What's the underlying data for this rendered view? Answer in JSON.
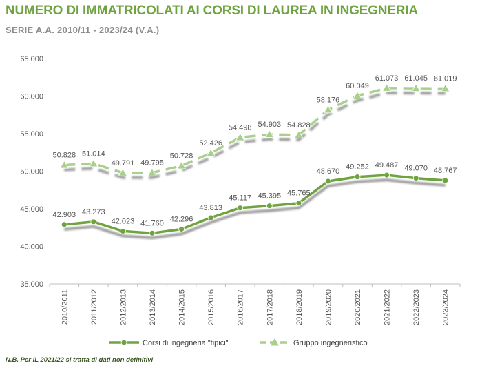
{
  "title": "NUMERO DI IMMATRICOLATI AI CORSI DI LAUREA IN INGEGNERIA",
  "subtitle": "SERIE A.A. 2010/11 - 2023/24  (V.A.)",
  "note": "N.B. Per IL 2021/22 si tratta di dati non definitivi",
  "chart_data": {
    "type": "line",
    "categories": [
      "2010/2011",
      "2011/2012",
      "2012/2013",
      "2013/2014",
      "2014/2015",
      "2015/2016",
      "2016/2017",
      "2017/2018",
      "2018/2019",
      "2019/2020",
      "2020/2021",
      "2021/2022",
      "2022/2023",
      "2023/2024"
    ],
    "ylim": [
      35000,
      65000
    ],
    "yticks": [
      35000,
      40000,
      45000,
      50000,
      55000,
      60000,
      65000
    ],
    "ytick_labels": [
      "35.000",
      "40.000",
      "45.000",
      "50.000",
      "55.000",
      "60.000",
      "65.000"
    ],
    "grid": false,
    "legend_position": "bottom",
    "series": [
      {
        "name": "Corsi di ingegneria \"tipici\"",
        "color": "#6fa33f",
        "line_style": "solid",
        "marker": "circle",
        "values": [
          42903,
          43273,
          42023,
          41760,
          42296,
          43813,
          45117,
          45395,
          45765,
          48670,
          49252,
          49487,
          49070,
          48767
        ],
        "labels": [
          "42.903",
          "43.273",
          "42.023",
          "41.760",
          "42.296",
          "43.813",
          "45.117",
          "45.395",
          "45.765",
          "48.670",
          "49.252",
          "49.487",
          "49.070",
          "48.767"
        ]
      },
      {
        "name": "Gruppo ingegneristico",
        "color": "#a9cf8c",
        "line_style": "dashed",
        "marker": "triangle",
        "values": [
          50828,
          51014,
          49791,
          49795,
          50728,
          52426,
          54498,
          54903,
          54828,
          58176,
          60049,
          61073,
          61045,
          61019
        ],
        "labels": [
          "50.828",
          "51.014",
          "49.791",
          "49.795",
          "50.728",
          "52.426",
          "54.498",
          "54.903",
          "54.828",
          "58.176",
          "60.049",
          "61.073",
          "61.045",
          "61.019"
        ]
      }
    ]
  }
}
